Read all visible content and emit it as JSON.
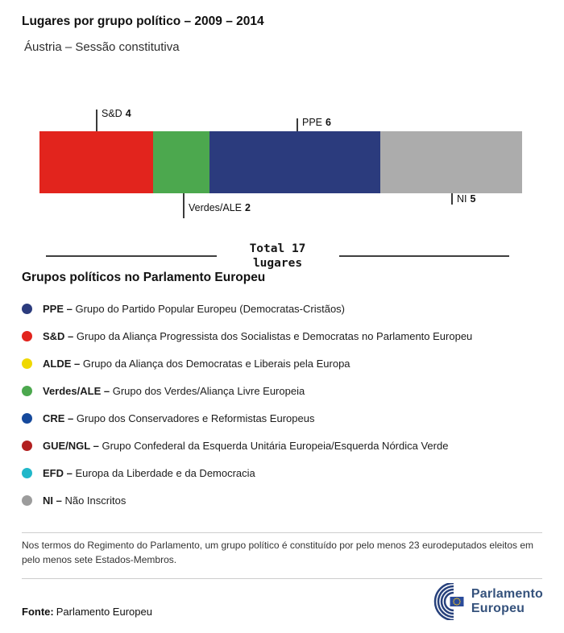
{
  "header": {
    "title": "Lugares por grupo político – 2009 – 2014",
    "subtitle": "Áustria – Sessão constitutiva"
  },
  "chart_data": {
    "type": "bar",
    "variant": "horizontal-stacked-seats",
    "title": "Lugares por grupo político – 2009 – 2014",
    "subtitle": "Áustria – Sessão constitutiva",
    "total_seats": 17,
    "total_caption_line1": "Total 17",
    "total_caption_line2": "lugares",
    "categories": [
      "S&D",
      "Verdes/ALE",
      "PPE",
      "NI"
    ],
    "values": [
      4,
      2,
      6,
      5
    ],
    "segments": [
      {
        "name": "S&D",
        "seats": 4,
        "color": "#e2241d",
        "label_side": "above"
      },
      {
        "name": "Verdes/ALE",
        "seats": 2,
        "color": "#4ca84e",
        "label_side": "below"
      },
      {
        "name": "PPE",
        "seats": 6,
        "color": "#2b3b7d",
        "label_side": "above"
      },
      {
        "name": "NI",
        "seats": 5,
        "color": "#acacac",
        "label_side": "below"
      }
    ]
  },
  "legend": {
    "heading": "Grupos políticos no Parlamento Europeu",
    "items": [
      {
        "abbr": "PPE –",
        "desc": "Grupo do Partido Popular Europeu (Democratas-Cristãos)",
        "color": "#2b3b7d"
      },
      {
        "abbr": "S&D –",
        "desc": "Grupo da Aliança Progressista dos Socialistas e Democratas no Parlamento Europeu",
        "color": "#e2241d"
      },
      {
        "abbr": "ALDE –",
        "desc": "Grupo da Aliança dos Democratas e Liberais pela Europa",
        "color": "#efd800"
      },
      {
        "abbr": "Verdes/ALE –",
        "desc": "Grupo dos Verdes/Aliança Livre Europeia",
        "color": "#4ca84e"
      },
      {
        "abbr": "CRE –",
        "desc": "Grupo dos Conservadores e Reformistas Europeus",
        "color": "#15499c"
      },
      {
        "abbr": "GUE/NGL –",
        "desc": "Grupo Confederal da Esquerda Unitária Europeia/Esquerda Nórdica Verde",
        "color": "#b22020"
      },
      {
        "abbr": "EFD –",
        "desc": "Europa da Liberdade e da Democracia",
        "color": "#20b7c9"
      },
      {
        "abbr": "NI –",
        "desc": "Não Inscritos",
        "color": "#9c9c9c"
      }
    ]
  },
  "footnote": "Nos termos do Regimento do Parlamento, um grupo político é constituído por pelo menos 23 eurodeputados eleitos em pelo menos sete Estados-Membros.",
  "footer": {
    "source_label": "Fonte:",
    "source_text": "Parlamento Europeu",
    "logo_line1": "Parlamento",
    "logo_line2": "Europeu"
  }
}
